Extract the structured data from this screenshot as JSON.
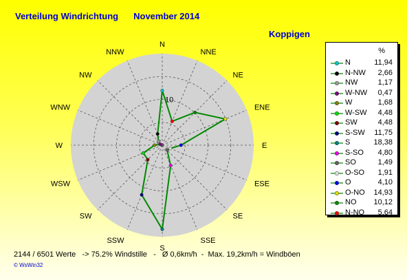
{
  "title": "Verteilung Windrichtung",
  "month": "November 2014",
  "station": "Koppigen",
  "footer": "2144 / 6501 Werte   -> 75.2% Windstille   -   Ø 0,6km/h  -  Max. 19,2km/h = Windböen",
  "brand": "© WsWin32",
  "colors": {
    "line": "#008800",
    "disc": "#d3d3d3",
    "grid": "#555555",
    "label": "#0000cc"
  },
  "chart_data": {
    "type": "radar",
    "directions": [
      "N",
      "NNE",
      "NE",
      "ENE",
      "E",
      "ESE",
      "SE",
      "SSE",
      "S",
      "SSW",
      "SW",
      "WSW",
      "W",
      "WNW",
      "NW",
      "NNW"
    ],
    "values": [
      11.94,
      5.64,
      10.12,
      14.93,
      4.1,
      1.91,
      1.49,
      4.8,
      18.38,
      11.75,
      4.48,
      4.48,
      1.68,
      0.47,
      1.17,
      2.66
    ],
    "max": 20,
    "ring_step": 5,
    "ring_label": "10",
    "unit": "%",
    "legend": [
      {
        "name": "N",
        "value": "11,94",
        "color": "#00c8c8"
      },
      {
        "name": "N-NW",
        "value": "2,66",
        "color": "#000000"
      },
      {
        "name": "NW",
        "value": "1,17",
        "color": "#9a9a9a"
      },
      {
        "name": "W-NW",
        "value": "0,47",
        "color": "#800080"
      },
      {
        "name": "W",
        "value": "1,68",
        "color": "#808000"
      },
      {
        "name": "W-SW",
        "value": "4,48",
        "color": "#00dd00"
      },
      {
        "name": "SW",
        "value": "4,48",
        "color": "#800000"
      },
      {
        "name": "S-SW",
        "value": "11,75",
        "color": "#000088"
      },
      {
        "name": "S",
        "value": "18,38",
        "color": "#008080"
      },
      {
        "name": "S-SO",
        "value": "4,80",
        "color": "#ee00ee"
      },
      {
        "name": "SO",
        "value": "1,49",
        "color": "#606060"
      },
      {
        "name": "O-SO",
        "value": "1,91",
        "color": "#dddddd"
      },
      {
        "name": "O",
        "value": "4,10",
        "color": "#0000ff"
      },
      {
        "name": "O-NO",
        "value": "14,93",
        "color": "#dddd00"
      },
      {
        "name": "NO",
        "value": "10,12",
        "color": "#008800"
      },
      {
        "name": "N-NO",
        "value": "5,64",
        "color": "#ff0000"
      }
    ]
  }
}
